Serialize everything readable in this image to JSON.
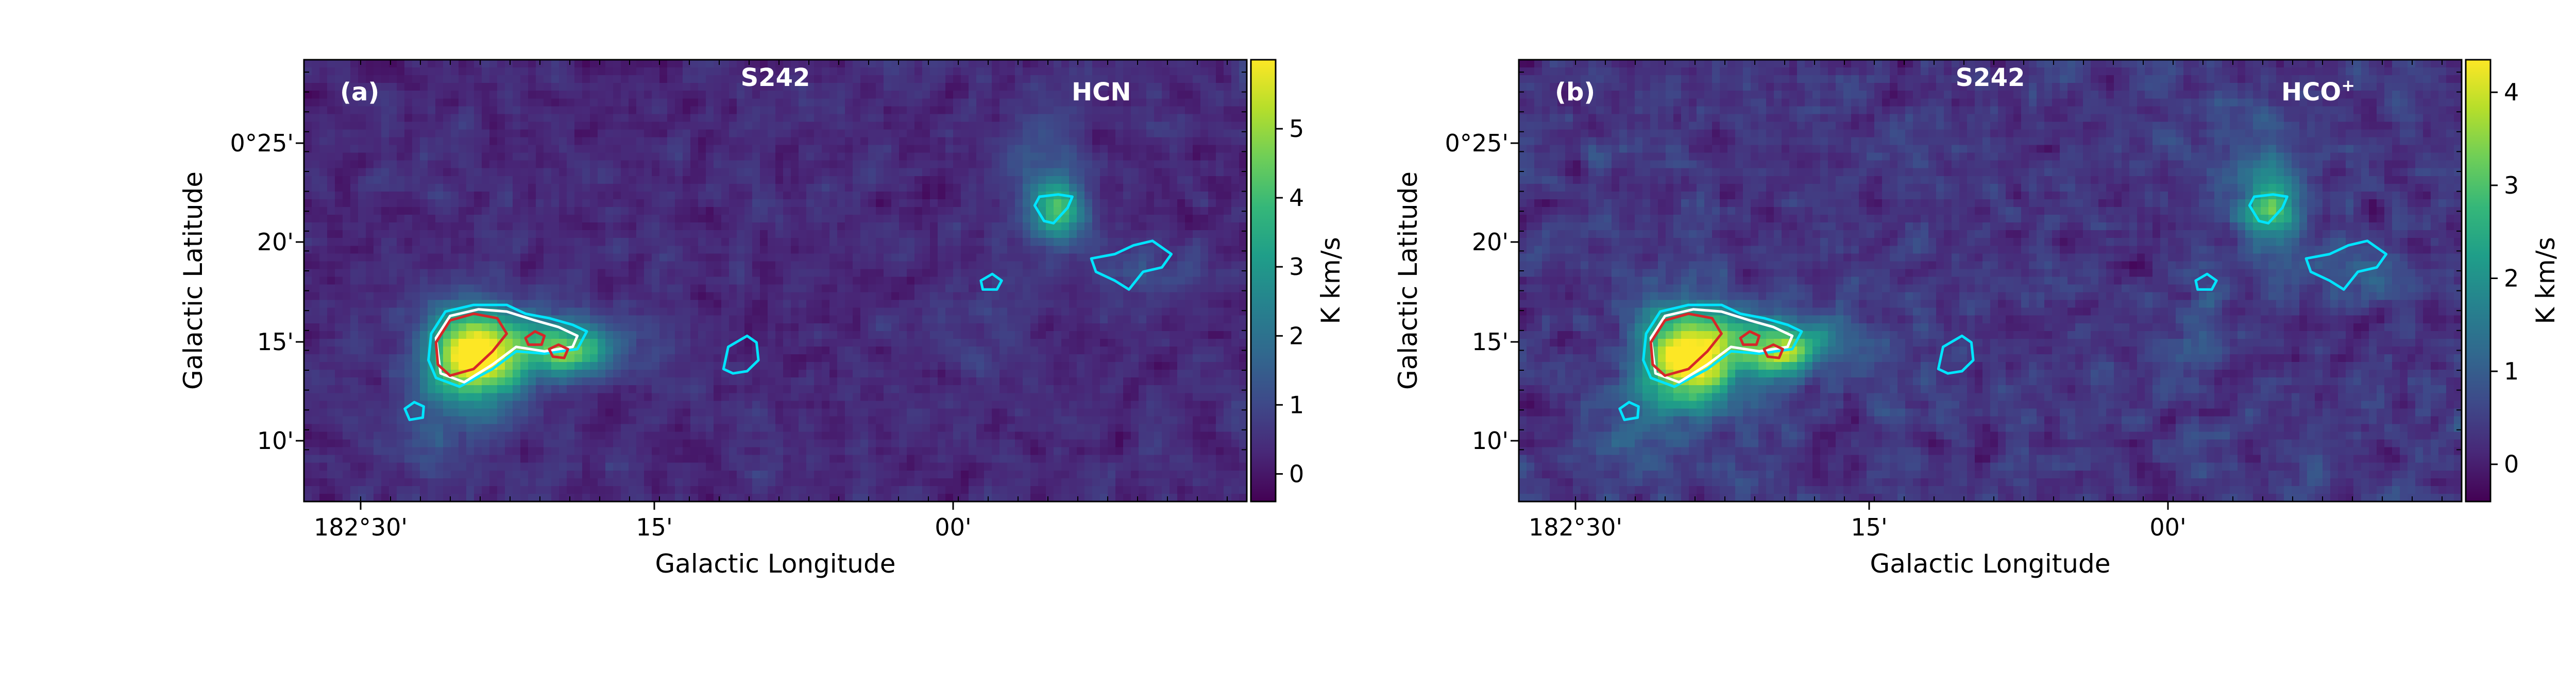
{
  "chart_data": [
    {
      "type": "heatmap",
      "panel_label": "(a)",
      "region": "S242",
      "molecule": "HCN",
      "molecule_superscript": "",
      "xlabel": "Galactic Longitude",
      "ylabel": "Galactic Latitude",
      "x_ticks": [
        "182°30'",
        "15'",
        "00'"
      ],
      "y_ticks": [
        "0°25'",
        "20'",
        "15'",
        "10'"
      ],
      "colorbar": {
        "label": "K km/s",
        "range": [
          -0.4,
          6.0
        ],
        "ticks": [
          "0",
          "1",
          "2",
          "3",
          "4",
          "5"
        ],
        "tick_values": [
          0,
          1,
          2,
          3,
          4,
          5
        ]
      },
      "peak_value": 6.0,
      "filament_value": 1.2,
      "noise_seed": 17,
      "colormap": [
        "#440154",
        "#482878",
        "#3e4989",
        "#31688e",
        "#26828e",
        "#1f9e89",
        "#35b779",
        "#6ece58",
        "#b5de2b",
        "#fde725"
      ],
      "contour_colors": {
        "outer": "#00e5ff",
        "mid": "#ffffff",
        "inner": "#d62728"
      }
    },
    {
      "type": "heatmap",
      "panel_label": "(b)",
      "region": "S242",
      "molecule": "HCO",
      "molecule_superscript": "+",
      "xlabel": "Galactic Longitude",
      "ylabel": "Galactic Latitude",
      "x_ticks": [
        "182°30'",
        "15'",
        "00'"
      ],
      "y_ticks": [
        "0°25'",
        "20'",
        "15'",
        "10'"
      ],
      "colorbar": {
        "label": "K km/s",
        "range": [
          -0.4,
          4.35
        ],
        "ticks": [
          "0",
          "1",
          "2",
          "3",
          "4"
        ],
        "tick_values": [
          0,
          1,
          2,
          3,
          4
        ]
      },
      "peak_value": 4.35,
      "filament_value": 1.1,
      "noise_seed": 53,
      "colormap": [
        "#440154",
        "#482878",
        "#3e4989",
        "#31688e",
        "#26828e",
        "#1f9e89",
        "#35b779",
        "#6ece58",
        "#b5de2b",
        "#fde725"
      ],
      "contour_colors": {
        "outer": "#00e5ff",
        "mid": "#ffffff",
        "inner": "#d62728"
      }
    }
  ]
}
